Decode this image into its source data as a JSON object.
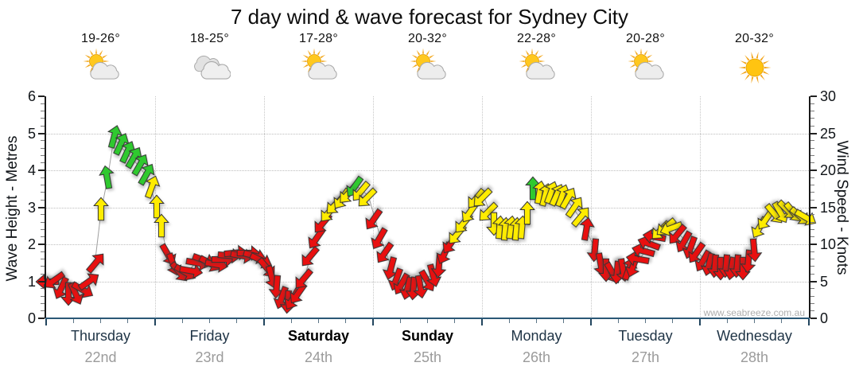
{
  "title": "7 day wind & wave forecast for Sydney City",
  "watermark": "www.seabreeze.com.au",
  "days": [
    {
      "name": "Thursday",
      "date": "22nd",
      "temp": "19-26°",
      "icon": "sun-cloud",
      "bold": false
    },
    {
      "name": "Friday",
      "date": "23rd",
      "temp": "18-25°",
      "icon": "cloudy",
      "bold": false
    },
    {
      "name": "Saturday",
      "date": "24th",
      "temp": "17-28°",
      "icon": "sun-cloud",
      "bold": true
    },
    {
      "name": "Sunday",
      "date": "25th",
      "temp": "20-32°",
      "icon": "sun-cloud",
      "bold": true
    },
    {
      "name": "Monday",
      "date": "26th",
      "temp": "22-28°",
      "icon": "sun-cloud",
      "bold": false
    },
    {
      "name": "Tuesday",
      "date": "27th",
      "temp": "20-28°",
      "icon": "sun-cloud",
      "bold": false
    },
    {
      "name": "Wednesday",
      "date": "28th",
      "temp": "20-32°",
      "icon": "sunny",
      "bold": false
    }
  ],
  "chart_data": {
    "type": "line",
    "title": "7 day wind & wave forecast for Sydney City",
    "x_axis": {
      "categories": [
        "Thursday 22nd",
        "Friday 23rd",
        "Saturday 24th",
        "Sunday 25th",
        "Monday 26th",
        "Tuesday 27th",
        "Wednesday 28th"
      ],
      "hours_total": 168,
      "minor_ticks_per_day": 4
    },
    "y_left": {
      "label": "Wave Height - Metres",
      "min": 0,
      "max": 6,
      "tick_step": 1,
      "minor_step": 0.2
    },
    "y_right": {
      "label": "Wind Speed - Knots",
      "min": 0,
      "max": 30,
      "tick_step": 5,
      "minor_step": 1
    },
    "grid": {
      "h_lines": [
        1,
        2,
        3,
        4,
        5
      ],
      "v_lines_at_day_boundaries": true
    },
    "colors": {
      "r": "#e81010",
      "y": "#ffec00",
      "g": "#2fc92f",
      "outline": "#333333",
      "axis": "#1a1a1a",
      "x_axis_line": "#2b5876",
      "grid": "#c0c0c0",
      "day_text": "#1e3345",
      "date_text": "#9b9b9b",
      "watermark": "#aeaeae"
    },
    "arrow_meaning": "wind direction arrows; y-position = wind speed (knots, right axis) and wave height (metres, left axis); color = wind strength band",
    "arrows": [
      [
        0.7,
        5,
        "r",
        270
      ],
      [
        2.1,
        5.3,
        "r",
        235
      ],
      [
        3.5,
        4.3,
        "r",
        205
      ],
      [
        4.9,
        3.5,
        "r",
        180
      ],
      [
        6.3,
        3.5,
        "r",
        155
      ],
      [
        7.7,
        4,
        "r",
        120
      ],
      [
        9.1,
        4.8,
        "r",
        55
      ],
      [
        10.7,
        7.3,
        "r",
        40
      ],
      [
        12.1,
        14.5,
        "y",
        0
      ],
      [
        13.5,
        18.8,
        "g",
        350
      ],
      [
        14.9,
        24.3,
        "g",
        15
      ],
      [
        16.3,
        23.3,
        "g",
        25
      ],
      [
        17.7,
        22.3,
        "g",
        25
      ],
      [
        19.1,
        21.5,
        "g",
        30
      ],
      [
        20.5,
        20.5,
        "g",
        30
      ],
      [
        21.9,
        19.3,
        "g",
        30
      ],
      [
        23.1,
        17.5,
        "y",
        20
      ],
      [
        24.4,
        14.8,
        "y",
        0
      ],
      [
        25.4,
        12.3,
        "y",
        0
      ],
      [
        26.6,
        8.8,
        "r",
        150
      ],
      [
        27.9,
        7.5,
        "r",
        160
      ],
      [
        29.1,
        6.5,
        "r",
        140
      ],
      [
        30.3,
        6.3,
        "r",
        120
      ],
      [
        31.5,
        6.5,
        "r",
        100
      ],
      [
        32.9,
        7.5,
        "r",
        100
      ],
      [
        34.3,
        8,
        "r",
        110
      ],
      [
        35.7,
        7.5,
        "r",
        120
      ],
      [
        37.1,
        7.3,
        "r",
        100
      ],
      [
        38.5,
        8,
        "r",
        90
      ],
      [
        39.9,
        8.5,
        "r",
        95
      ],
      [
        41.3,
        8.8,
        "r",
        85
      ],
      [
        42.7,
        8.5,
        "r",
        100
      ],
      [
        44.1,
        8.8,
        "r",
        90
      ],
      [
        45.5,
        8.5,
        "r",
        105
      ],
      [
        46.9,
        8,
        "r",
        115
      ],
      [
        48.4,
        7,
        "r",
        140
      ],
      [
        49.6,
        5.8,
        "r",
        165
      ],
      [
        50.8,
        4.5,
        "r",
        185
      ],
      [
        52,
        3,
        "r",
        200
      ],
      [
        53.3,
        2.5,
        "r",
        185
      ],
      [
        54.5,
        2.8,
        "r",
        210
      ],
      [
        55.7,
        3.5,
        "r",
        215
      ],
      [
        56.9,
        5.5,
        "r",
        220
      ],
      [
        58.3,
        8.5,
        "r",
        220
      ],
      [
        59.7,
        11,
        "r",
        215
      ],
      [
        61.1,
        13,
        "r",
        220
      ],
      [
        62.5,
        14.5,
        "y",
        220
      ],
      [
        63.9,
        15.5,
        "y",
        225
      ],
      [
        65.3,
        16.3,
        "y",
        215
      ],
      [
        66.7,
        17,
        "y",
        222
      ],
      [
        68.1,
        18,
        "g",
        215
      ],
      [
        69.6,
        17.3,
        "y",
        220
      ],
      [
        71,
        16.5,
        "y",
        225
      ],
      [
        72.4,
        13.5,
        "r",
        215
      ],
      [
        73.6,
        11,
        "r",
        210
      ],
      [
        74.8,
        9,
        "r",
        215
      ],
      [
        76,
        7,
        "r",
        195
      ],
      [
        77.3,
        5.5,
        "r",
        200
      ],
      [
        78.5,
        4.8,
        "r",
        210
      ],
      [
        79.7,
        4.3,
        "r",
        195
      ],
      [
        80.9,
        4.3,
        "r",
        185
      ],
      [
        82.3,
        4.5,
        "r",
        170
      ],
      [
        83.7,
        5.3,
        "r",
        150
      ],
      [
        85.1,
        6,
        "r",
        165
      ],
      [
        86.5,
        7.3,
        "r",
        185
      ],
      [
        87.9,
        9,
        "r",
        205
      ],
      [
        89.3,
        10.3,
        "r",
        215
      ],
      [
        90.7,
        11.5,
        "y",
        220
      ],
      [
        92.1,
        13,
        "y",
        220
      ],
      [
        93.5,
        14.5,
        "y",
        215
      ],
      [
        94.9,
        16.3,
        "y",
        220
      ],
      [
        96.4,
        16.5,
        "y",
        225
      ],
      [
        97.6,
        14.5,
        "y",
        225
      ],
      [
        98.6,
        13,
        "y",
        180
      ],
      [
        99.9,
        12,
        "y",
        5
      ],
      [
        101.1,
        11.8,
        "y",
        5
      ],
      [
        102.3,
        12,
        "y",
        8
      ],
      [
        103.5,
        11.8,
        "y",
        5
      ],
      [
        104.8,
        12,
        "y",
        5
      ],
      [
        106,
        14,
        "y",
        0
      ],
      [
        107.2,
        17.3,
        "g",
        0
      ],
      [
        108.6,
        16.8,
        "y",
        10
      ],
      [
        109.8,
        16.5,
        "y",
        15
      ],
      [
        111.1,
        16.8,
        "y",
        20
      ],
      [
        112.3,
        16.5,
        "y",
        25
      ],
      [
        113.5,
        16.3,
        "y",
        20
      ],
      [
        114.7,
        16,
        "y",
        30
      ],
      [
        116.2,
        14.8,
        "y",
        35
      ],
      [
        117.6,
        13.5,
        "y",
        40
      ],
      [
        119,
        11.8,
        "r",
        10
      ],
      [
        120.9,
        9.5,
        "r",
        185
      ],
      [
        122.1,
        7.5,
        "r",
        170
      ],
      [
        123.3,
        6.8,
        "r",
        180
      ],
      [
        124.6,
        6.3,
        "r",
        150
      ],
      [
        125.8,
        6.5,
        "r",
        185
      ],
      [
        127,
        6.8,
        "r",
        170
      ],
      [
        128.2,
        6.5,
        "r",
        20
      ],
      [
        129.5,
        7.3,
        "r",
        200
      ],
      [
        130.7,
        8,
        "r",
        280
      ],
      [
        131.9,
        9,
        "r",
        285
      ],
      [
        133.1,
        10,
        "r",
        290
      ],
      [
        134.4,
        11,
        "r",
        280
      ],
      [
        135.6,
        12,
        "y",
        225
      ],
      [
        136.8,
        12.5,
        "y",
        230
      ],
      [
        138,
        12.3,
        "y",
        250
      ],
      [
        139.3,
        11.5,
        "r",
        220
      ],
      [
        140.7,
        10.5,
        "r",
        210
      ],
      [
        142.1,
        9.8,
        "r",
        200
      ],
      [
        143.5,
        9,
        "r",
        215
      ],
      [
        144.9,
        8,
        "r",
        210
      ],
      [
        146.1,
        7.5,
        "r",
        195
      ],
      [
        147.3,
        7.3,
        "r",
        185
      ],
      [
        148.6,
        7,
        "r",
        180
      ],
      [
        149.8,
        7.3,
        "r",
        185
      ],
      [
        151,
        7,
        "r",
        190
      ],
      [
        152.2,
        7.3,
        "r",
        185
      ],
      [
        153.5,
        7,
        "r",
        180
      ],
      [
        154.7,
        8,
        "r",
        185
      ],
      [
        155.9,
        9.5,
        "r",
        175
      ],
      [
        157.3,
        12.5,
        "y",
        210
      ],
      [
        158.7,
        13.5,
        "y",
        215
      ],
      [
        160.1,
        14.3,
        "y",
        140
      ],
      [
        161.5,
        14.5,
        "y",
        150
      ],
      [
        162.9,
        14.8,
        "y",
        135
      ],
      [
        164.3,
        14.5,
        "y",
        140
      ],
      [
        165.7,
        14,
        "y",
        130
      ],
      [
        166.9,
        13.8,
        "y",
        120
      ]
    ]
  }
}
